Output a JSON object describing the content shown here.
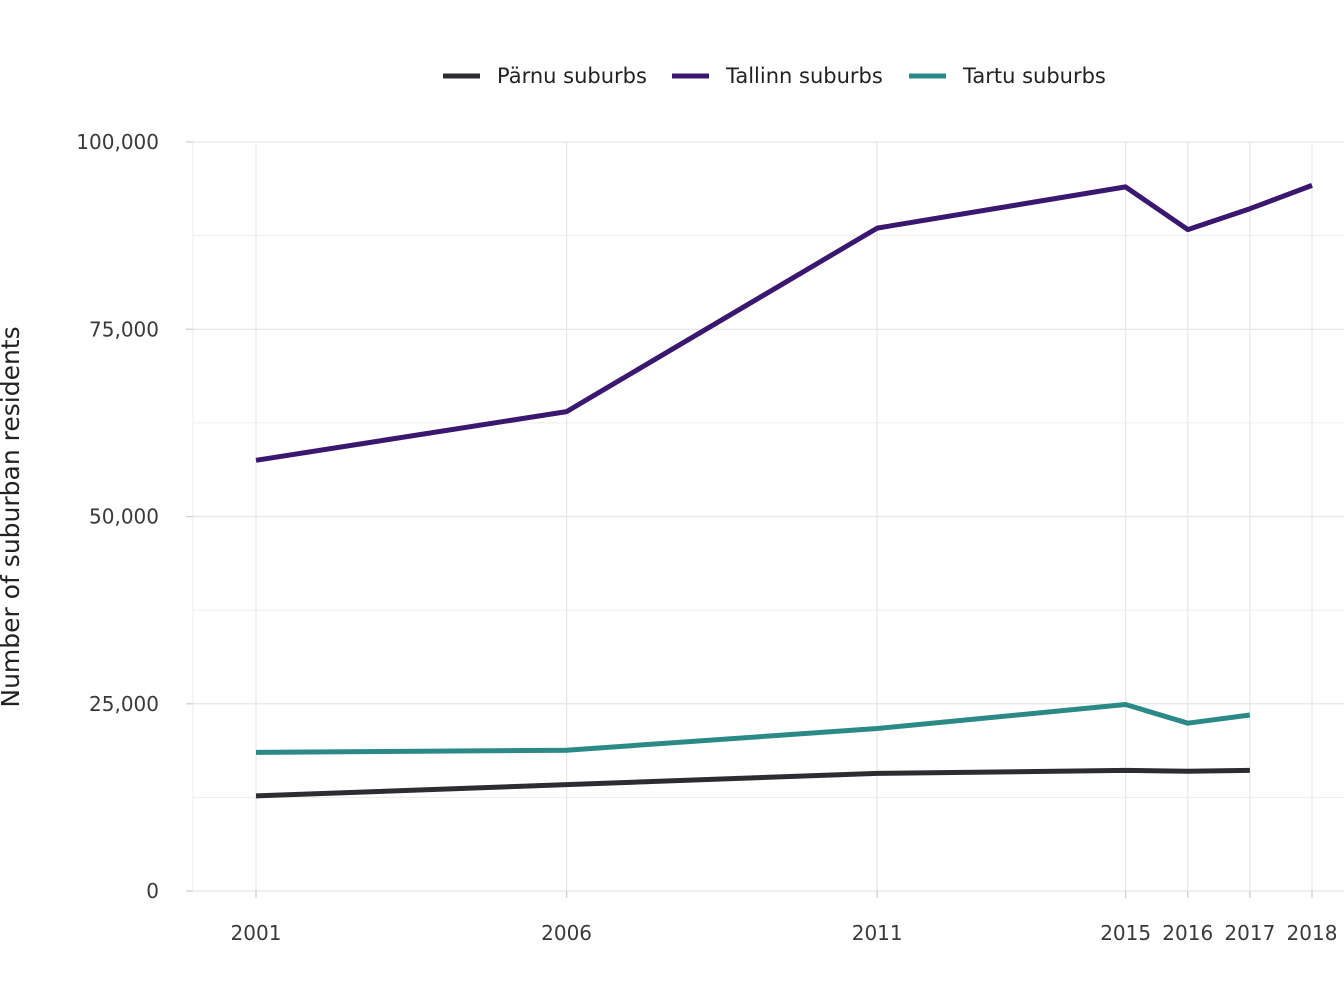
{
  "chart_data": {
    "type": "line",
    "title": "",
    "xlabel": "",
    "ylabel": "Number of suburban residents",
    "x": [
      2001,
      2006,
      2011,
      2015,
      2016,
      2017,
      2018
    ],
    "x_tick_labels": [
      "2001",
      "2006",
      "2011",
      "2015",
      "2016",
      "2017",
      "2018"
    ],
    "ylim": [
      0,
      100000
    ],
    "y_ticks": [
      0,
      25000,
      50000,
      75000,
      100000
    ],
    "y_tick_labels": [
      "0",
      "25,000",
      "50,000",
      "75,000",
      "100,000"
    ],
    "grid": true,
    "legend_position": "top",
    "series": [
      {
        "name": "Pärnu suburbs",
        "color": "#2b2d33",
        "x": [
          2001,
          2006,
          2011,
          2015,
          2016,
          2017
        ],
        "values": [
          12700,
          14200,
          15700,
          16100,
          16000,
          16100
        ]
      },
      {
        "name": "Tallinn suburbs",
        "color": "#3b1870",
        "x": [
          2001,
          2006,
          2011,
          2015,
          2016,
          2017,
          2018
        ],
        "values": [
          57500,
          64000,
          88500,
          94000,
          88300,
          91100,
          94200
        ]
      },
      {
        "name": "Tartu suburbs",
        "color": "#2b8a87",
        "x": [
          2001,
          2006,
          2011,
          2015,
          2016,
          2017
        ],
        "values": [
          18500,
          18800,
          21700,
          24900,
          22400,
          23500
        ]
      }
    ]
  }
}
